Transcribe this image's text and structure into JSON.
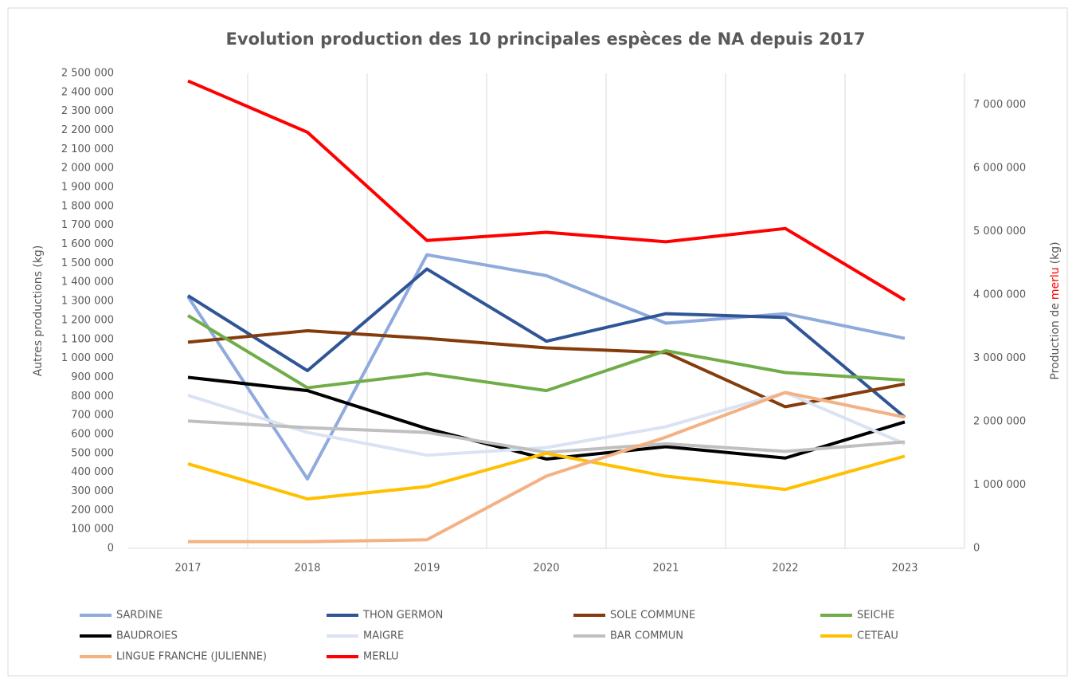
{
  "chart_data": {
    "type": "line",
    "title": "Evolution production des 10 principales espèces de NA depuis 2017",
    "ylabel": "Autres productions (kg)",
    "y2label": {
      "prefix": "Production de",
      "highlight": "merlu",
      "suffix": "(kg)"
    },
    "categories": [
      "2017",
      "2018",
      "2019",
      "2020",
      "2021",
      "2022",
      "2023"
    ],
    "ylim": [
      0,
      2500000
    ],
    "yticks": [
      0,
      {
        "value": 100000,
        "label": "100 000"
      },
      {
        "value": 200000,
        "label": "200 000"
      },
      {
        "value": 300000,
        "label": "300 000"
      },
      {
        "value": 400000,
        "label": "400 000"
      },
      {
        "value": 500000,
        "label": "500 000"
      },
      {
        "value": 600000,
        "label": "600 000"
      },
      {
        "value": 700000,
        "label": "700 000"
      },
      {
        "value": 800000,
        "label": "800 000"
      },
      {
        "value": 900000,
        "label": "900 000"
      },
      {
        "value": 1000000,
        "label": "1 000 000"
      },
      {
        "value": 1100000,
        "label": "1 100 000"
      },
      {
        "value": 1200000,
        "label": "1 200 000"
      },
      {
        "value": 1300000,
        "label": "1 300 000"
      },
      {
        "value": 1400000,
        "label": "1 400 000"
      },
      {
        "value": 1500000,
        "label": "1 500 000"
      },
      {
        "value": 1600000,
        "label": "1 600 000"
      },
      {
        "value": 1700000,
        "label": "1 700 000"
      },
      {
        "value": 1800000,
        "label": "1 800 000"
      },
      {
        "value": 1900000,
        "label": "1 900 000"
      },
      {
        "value": 2000000,
        "label": "2 000 000"
      },
      {
        "value": 2100000,
        "label": "2 100 000"
      },
      {
        "value": 2200000,
        "label": "2 200 000"
      },
      {
        "value": 2300000,
        "label": "2 300 000"
      },
      {
        "value": 2400000,
        "label": "2 400 000"
      },
      {
        "value": 2500000,
        "label": "2 500 000"
      }
    ],
    "y2lim": [
      0,
      7500000
    ],
    "y2ticks": [
      0,
      {
        "value": 1000000,
        "label": "1 000 000"
      },
      {
        "value": 2000000,
        "label": "2 000 000"
      },
      {
        "value": 3000000,
        "label": "3 000 000"
      },
      {
        "value": 4000000,
        "label": "4 000 000"
      },
      {
        "value": 5000000,
        "label": "5 000 000"
      },
      {
        "value": 6000000,
        "label": "6 000 000"
      },
      {
        "value": 7000000,
        "label": "7 000 000"
      }
    ],
    "highlight_color": "#ff0000",
    "series": [
      {
        "name": "SARDINE",
        "color": "#8faadc",
        "values": [
          1325000,
          365000,
          1545000,
          1435000,
          1185000,
          1235000,
          1105000
        ]
      },
      {
        "name": "THON GERMON",
        "color": "#2f5597",
        "values": [
          1330000,
          935000,
          1470000,
          1090000,
          1235000,
          1215000,
          690000
        ]
      },
      {
        "name": "SOLE COMMUNE",
        "color": "#843c0c",
        "values": [
          1085000,
          1145000,
          1105000,
          1055000,
          1030000,
          745000,
          865000
        ]
      },
      {
        "name": "SEICHE",
        "color": "#70ad47",
        "values": [
          1225000,
          845000,
          920000,
          830000,
          1040000,
          925000,
          885000
        ]
      },
      {
        "name": "BAUDROIES",
        "color": "#000000",
        "values": [
          900000,
          830000,
          630000,
          470000,
          535000,
          475000,
          665000
        ]
      },
      {
        "name": "MAIGRE",
        "color": "#dae3f3",
        "values": [
          805000,
          610000,
          490000,
          530000,
          640000,
          820000,
          550000
        ]
      },
      {
        "name": "BAR COMMUN",
        "color": "#bfbfbf",
        "values": [
          670000,
          635000,
          610000,
          505000,
          550000,
          510000,
          560000
        ]
      },
      {
        "name": "CETEAU",
        "color": "#ffc000",
        "values": [
          445000,
          260000,
          325000,
          500000,
          380000,
          310000,
          485000
        ]
      },
      {
        "name": "LINGUE FRANCHE (JULIENNE)",
        "color": "#f4b183",
        "values": [
          35000,
          35000,
          45000,
          380000,
          585000,
          820000,
          690000
        ]
      },
      {
        "name": "MERLU",
        "color": "#ff0000",
        "axis": "y2",
        "values": [
          7380000,
          6570000,
          4860000,
          4990000,
          4840000,
          5050000,
          3920000
        ]
      }
    ]
  }
}
